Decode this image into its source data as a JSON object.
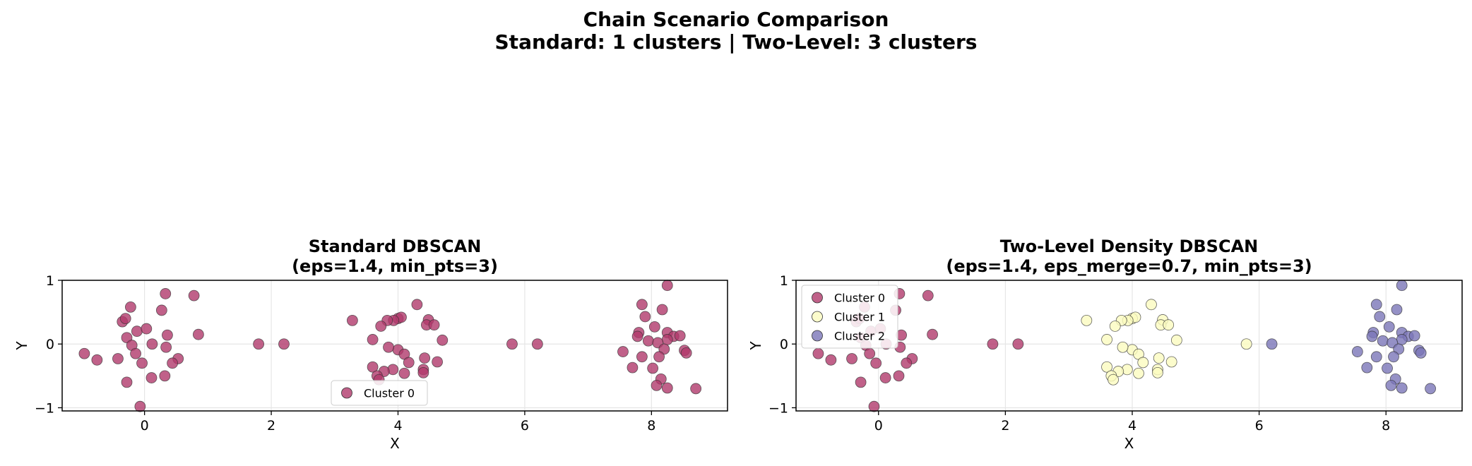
{
  "figure": {
    "suptitle_line1": "Chain Scenario Comparison",
    "suptitle_line2": "Standard: 1 clusters | Two-Level: 3 clusters"
  },
  "colors": {
    "cluster_0": "#b03a6b",
    "cluster_1": "#fbfbbf",
    "cluster_2": "#7b76b8",
    "grid": "#e6e6e6",
    "marker_edge": "#333333"
  },
  "chart_data": [
    {
      "type": "scatter",
      "title_line1": "Standard DBSCAN",
      "title_line2": "(eps=1.4, min_pts=3)",
      "xlabel": "X",
      "ylabel": "Y",
      "xlim": [
        -1.3,
        9.2
      ],
      "ylim": [
        -1.05,
        1.0
      ],
      "xticks": [
        0,
        2,
        4,
        6,
        8
      ],
      "xtick_labels": [
        "0",
        "2",
        "4",
        "6",
        "8"
      ],
      "yticks": [
        -1,
        0,
        1
      ],
      "ytick_labels": [
        "−1",
        "0",
        "1"
      ],
      "grid": true,
      "legend_position": "lower-center",
      "series": [
        {
          "name": "Cluster 0",
          "color": "#b03a6b",
          "points": [
            [
              -0.22,
              0.58
            ],
            [
              0.33,
              0.79
            ],
            [
              0.78,
              0.76
            ],
            [
              -0.35,
              0.35
            ],
            [
              -0.3,
              0.4
            ],
            [
              0.27,
              0.53
            ],
            [
              -0.12,
              0.2
            ],
            [
              0.03,
              0.24
            ],
            [
              0.36,
              0.14
            ],
            [
              0.85,
              0.15
            ],
            [
              -0.28,
              0.1
            ],
            [
              -0.2,
              -0.02
            ],
            [
              0.12,
              0.0
            ],
            [
              0.34,
              -0.05
            ],
            [
              -0.14,
              -0.15
            ],
            [
              -0.95,
              -0.15
            ],
            [
              -0.75,
              -0.25
            ],
            [
              -0.42,
              -0.23
            ],
            [
              -0.04,
              -0.3
            ],
            [
              0.53,
              -0.23
            ],
            [
              0.44,
              -0.3
            ],
            [
              0.11,
              -0.53
            ],
            [
              0.32,
              -0.5
            ],
            [
              -0.28,
              -0.6
            ],
            [
              -0.07,
              -0.98
            ],
            [
              1.8,
              0.0
            ],
            [
              2.2,
              0.0
            ],
            [
              3.28,
              0.37
            ],
            [
              4.3,
              0.62
            ],
            [
              4.0,
              0.4
            ],
            [
              4.05,
              0.42
            ],
            [
              3.93,
              0.37
            ],
            [
              3.83,
              0.37
            ],
            [
              4.48,
              0.38
            ],
            [
              4.45,
              0.3
            ],
            [
              4.57,
              0.3
            ],
            [
              3.73,
              0.28
            ],
            [
              4.7,
              0.06
            ],
            [
              3.6,
              0.07
            ],
            [
              4.0,
              -0.09
            ],
            [
              3.85,
              -0.05
            ],
            [
              4.1,
              -0.16
            ],
            [
              4.42,
              -0.22
            ],
            [
              4.62,
              -0.28
            ],
            [
              4.17,
              -0.29
            ],
            [
              3.6,
              -0.36
            ],
            [
              3.92,
              -0.4
            ],
            [
              3.78,
              -0.43
            ],
            [
              4.4,
              -0.4
            ],
            [
              4.4,
              -0.45
            ],
            [
              4.1,
              -0.46
            ],
            [
              3.67,
              -0.5
            ],
            [
              3.7,
              -0.56
            ],
            [
              5.8,
              0.0
            ],
            [
              6.2,
              0.0
            ],
            [
              8.25,
              0.92
            ],
            [
              7.85,
              0.62
            ],
            [
              8.17,
              0.54
            ],
            [
              7.9,
              0.43
            ],
            [
              8.05,
              0.27
            ],
            [
              7.8,
              0.18
            ],
            [
              7.78,
              0.12
            ],
            [
              8.25,
              0.18
            ],
            [
              8.35,
              0.12
            ],
            [
              8.45,
              0.13
            ],
            [
              8.25,
              0.07
            ],
            [
              7.95,
              0.05
            ],
            [
              8.1,
              0.02
            ],
            [
              7.55,
              -0.12
            ],
            [
              8.2,
              -0.08
            ],
            [
              8.52,
              -0.1
            ],
            [
              8.55,
              -0.14
            ],
            [
              7.85,
              -0.2
            ],
            [
              8.12,
              -0.2
            ],
            [
              7.7,
              -0.37
            ],
            [
              8.02,
              -0.38
            ],
            [
              8.15,
              -0.55
            ],
            [
              8.08,
              -0.65
            ],
            [
              8.25,
              -0.69
            ],
            [
              8.7,
              -0.7
            ]
          ]
        }
      ]
    },
    {
      "type": "scatter",
      "title_line1": "Two-Level Density DBSCAN",
      "title_line2": "(eps=1.4, eps_merge=0.7, min_pts=3)",
      "xlabel": "X",
      "ylabel": "Y",
      "xlim": [
        -1.3,
        9.2
      ],
      "ylim": [
        -1.05,
        1.0
      ],
      "xticks": [
        0,
        2,
        4,
        6,
        8
      ],
      "xtick_labels": [
        "0",
        "2",
        "4",
        "6",
        "8"
      ],
      "yticks": [
        -1,
        0,
        1
      ],
      "ytick_labels": [
        "−1",
        "0",
        "1"
      ],
      "grid": true,
      "legend_position": "upper-left",
      "series": [
        {
          "name": "Cluster 0",
          "color": "#b03a6b",
          "points": [
            [
              -0.22,
              0.58
            ],
            [
              0.33,
              0.79
            ],
            [
              0.78,
              0.76
            ],
            [
              -0.35,
              0.35
            ],
            [
              -0.3,
              0.4
            ],
            [
              0.27,
              0.53
            ],
            [
              -0.12,
              0.2
            ],
            [
              0.03,
              0.24
            ],
            [
              0.36,
              0.14
            ],
            [
              0.85,
              0.15
            ],
            [
              -0.28,
              0.1
            ],
            [
              -0.2,
              -0.02
            ],
            [
              0.12,
              0.0
            ],
            [
              0.34,
              -0.05
            ],
            [
              -0.14,
              -0.15
            ],
            [
              -0.95,
              -0.15
            ],
            [
              -0.75,
              -0.25
            ],
            [
              -0.42,
              -0.23
            ],
            [
              -0.04,
              -0.3
            ],
            [
              0.53,
              -0.23
            ],
            [
              0.44,
              -0.3
            ],
            [
              0.11,
              -0.53
            ],
            [
              0.32,
              -0.5
            ],
            [
              -0.28,
              -0.6
            ],
            [
              -0.07,
              -0.98
            ],
            [
              1.8,
              0.0
            ],
            [
              2.2,
              0.0
            ]
          ]
        },
        {
          "name": "Cluster 1",
          "color": "#fbfbbf",
          "points": [
            [
              3.28,
              0.37
            ],
            [
              4.3,
              0.62
            ],
            [
              4.0,
              0.4
            ],
            [
              4.05,
              0.42
            ],
            [
              3.93,
              0.37
            ],
            [
              3.83,
              0.37
            ],
            [
              4.48,
              0.38
            ],
            [
              4.45,
              0.3
            ],
            [
              4.57,
              0.3
            ],
            [
              3.73,
              0.28
            ],
            [
              4.7,
              0.06
            ],
            [
              3.6,
              0.07
            ],
            [
              4.0,
              -0.09
            ],
            [
              3.85,
              -0.05
            ],
            [
              4.1,
              -0.16
            ],
            [
              4.42,
              -0.22
            ],
            [
              4.62,
              -0.28
            ],
            [
              4.17,
              -0.29
            ],
            [
              3.6,
              -0.36
            ],
            [
              3.92,
              -0.4
            ],
            [
              3.78,
              -0.43
            ],
            [
              4.4,
              -0.4
            ],
            [
              4.4,
              -0.45
            ],
            [
              4.1,
              -0.46
            ],
            [
              3.67,
              -0.5
            ],
            [
              3.7,
              -0.56
            ],
            [
              5.8,
              0.0
            ]
          ]
        },
        {
          "name": "Cluster 2",
          "color": "#7b76b8",
          "points": [
            [
              6.2,
              0.0
            ],
            [
              8.25,
              0.92
            ],
            [
              7.85,
              0.62
            ],
            [
              8.17,
              0.54
            ],
            [
              7.9,
              0.43
            ],
            [
              8.05,
              0.27
            ],
            [
              7.8,
              0.18
            ],
            [
              7.78,
              0.12
            ],
            [
              8.25,
              0.18
            ],
            [
              8.35,
              0.12
            ],
            [
              8.45,
              0.13
            ],
            [
              8.25,
              0.07
            ],
            [
              7.95,
              0.05
            ],
            [
              8.1,
              0.02
            ],
            [
              7.55,
              -0.12
            ],
            [
              8.2,
              -0.08
            ],
            [
              8.52,
              -0.1
            ],
            [
              8.55,
              -0.14
            ],
            [
              7.85,
              -0.2
            ],
            [
              8.12,
              -0.2
            ],
            [
              7.7,
              -0.37
            ],
            [
              8.02,
              -0.38
            ],
            [
              8.15,
              -0.55
            ],
            [
              8.08,
              -0.65
            ],
            [
              8.25,
              -0.69
            ],
            [
              8.7,
              -0.7
            ]
          ]
        }
      ]
    }
  ]
}
